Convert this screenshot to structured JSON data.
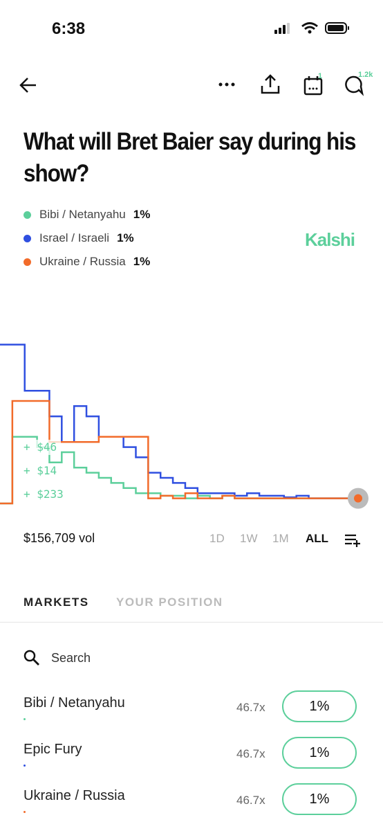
{
  "status": {
    "time": "6:38"
  },
  "toolbar": {
    "calendar_badge": "1",
    "comments_count": "1.2k"
  },
  "title": "What will Bret Baier say during his show?",
  "legend": [
    {
      "name": "Bibi / Netanyahu",
      "value": "1%",
      "color": "#5ccf9b"
    },
    {
      "name": "Israel / Israeli",
      "value": "1%",
      "color": "#2f4fe0"
    },
    {
      "name": "Ukraine / Russia",
      "value": "1%",
      "color": "#f26b2a"
    }
  ],
  "brand": "Kalshi",
  "chart": {
    "series": [
      {
        "name": "Bibi / Netanyahu",
        "color": "#5ccf9b",
        "values": [
          0,
          13,
          13,
          11,
          8,
          10,
          7,
          6,
          5,
          4,
          3,
          2,
          2,
          1.5,
          1.5,
          1,
          1.5,
          1,
          1.5,
          1,
          1,
          1,
          1,
          1,
          1,
          1,
          1,
          1,
          1,
          1
        ]
      },
      {
        "name": "Israel / Israeli",
        "color": "#2f4fe0",
        "values": [
          31,
          31,
          22,
          22,
          17,
          12,
          19,
          17,
          13,
          13,
          11,
          9,
          6,
          5,
          4,
          3,
          2,
          2,
          2,
          1.5,
          2,
          1.5,
          1.5,
          1.2,
          1.5,
          1,
          1,
          1,
          1,
          1
        ]
      },
      {
        "name": "Ukraine / Russia",
        "color": "#f26b2a",
        "values": [
          0,
          20,
          20,
          20,
          12,
          12,
          12,
          12,
          13,
          13,
          13,
          13,
          1,
          1.5,
          1,
          2,
          1,
          1,
          1.5,
          1,
          1,
          1,
          1,
          1,
          1,
          1,
          1,
          1,
          1,
          1
        ]
      }
    ],
    "annotations": [
      "+ $46",
      "+ $14",
      "+ $233"
    ]
  },
  "volume": "$156,709 vol",
  "ranges": [
    "1D",
    "1W",
    "1M",
    "ALL"
  ],
  "tabs": [
    "MARKETS",
    "YOUR POSITION"
  ],
  "search": "Search",
  "markets": [
    {
      "name": "Bibi / Netanyahu",
      "multiplier": "46.7x",
      "price": "1%",
      "color": "#5ccf9b"
    },
    {
      "name": "Epic Fury",
      "multiplier": "46.7x",
      "price": "1%",
      "color": "#2f4fe0"
    },
    {
      "name": "Ukraine / Russia",
      "multiplier": "46.7x",
      "price": "1%",
      "color": "#f26b2a"
    }
  ]
}
